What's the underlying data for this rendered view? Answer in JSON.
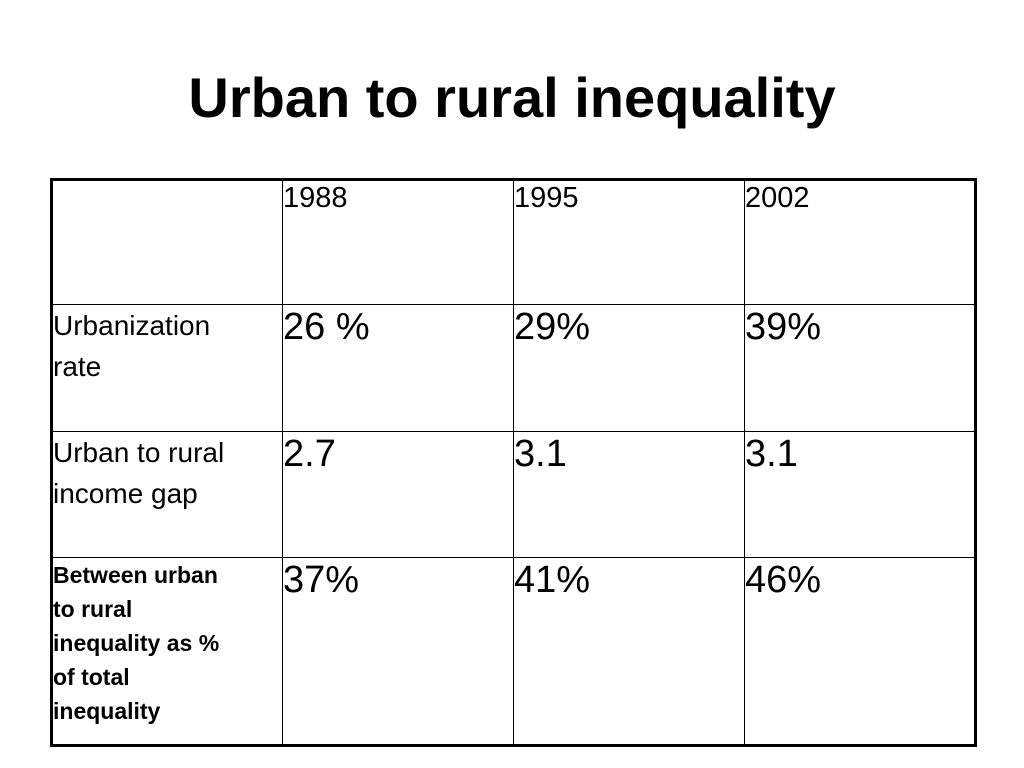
{
  "slide": {
    "title": "Urban to rural inequality"
  },
  "table": {
    "header": {
      "corner": "",
      "years": [
        "1988",
        "1995",
        "2002"
      ]
    },
    "rows": [
      {
        "label_line1": "Urbanization",
        "label_line2": "rate",
        "values": [
          "26 %",
          "29%",
          "39%"
        ]
      },
      {
        "label_line1": "Urban to rural",
        "label_line2": "income gap",
        "values": [
          "2.7",
          "3.1",
          "3.1"
        ]
      },
      {
        "label_line1": "Between urban",
        "label_line2": "to rural",
        "label_line3": "inequality as %",
        "label_line4": "of total",
        "label_line5": "inequality",
        "values": [
          "37%",
          "41%",
          "46%"
        ]
      }
    ]
  }
}
